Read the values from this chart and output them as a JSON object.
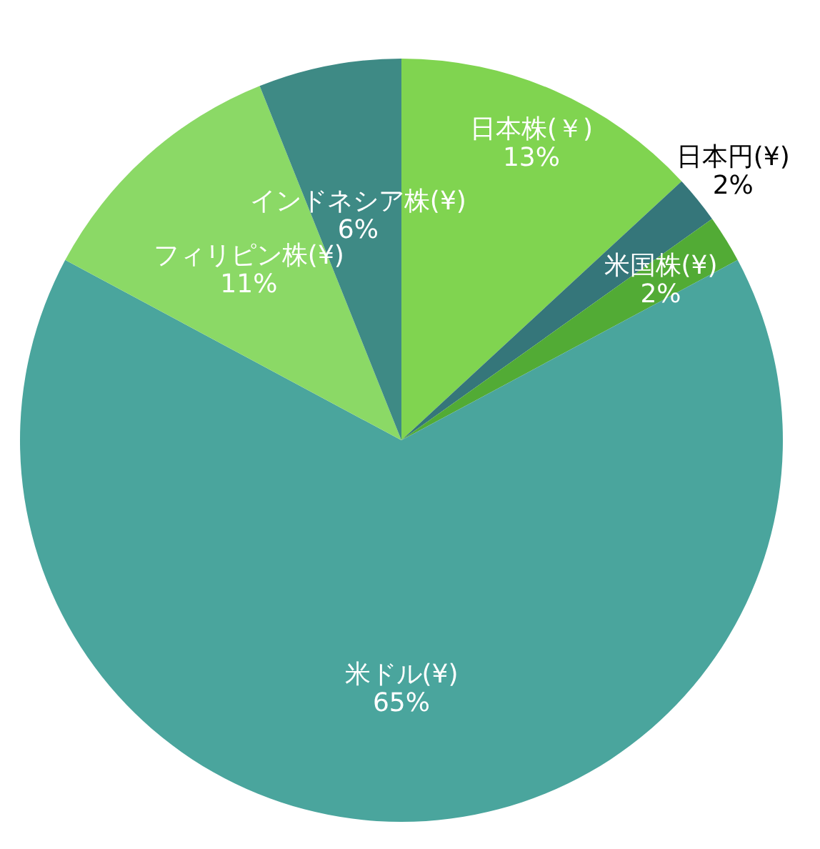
{
  "chart_data": {
    "type": "pie",
    "categories": [
      "日本株(￥)",
      "日本円(¥)",
      "米国株(¥)",
      "米ドル(¥)",
      "フィリピン株(¥)",
      "インドネシア株(¥)"
    ],
    "values": [
      13,
      2,
      2,
      65,
      11,
      6
    ],
    "colors": [
      "#80d450",
      "#35767a",
      "#52ab35",
      "#4aa59d",
      "#8bd966",
      "#3e8a85"
    ],
    "value_labels": [
      "13%",
      "2%",
      "2%",
      "65%",
      "11%",
      "6%"
    ]
  }
}
